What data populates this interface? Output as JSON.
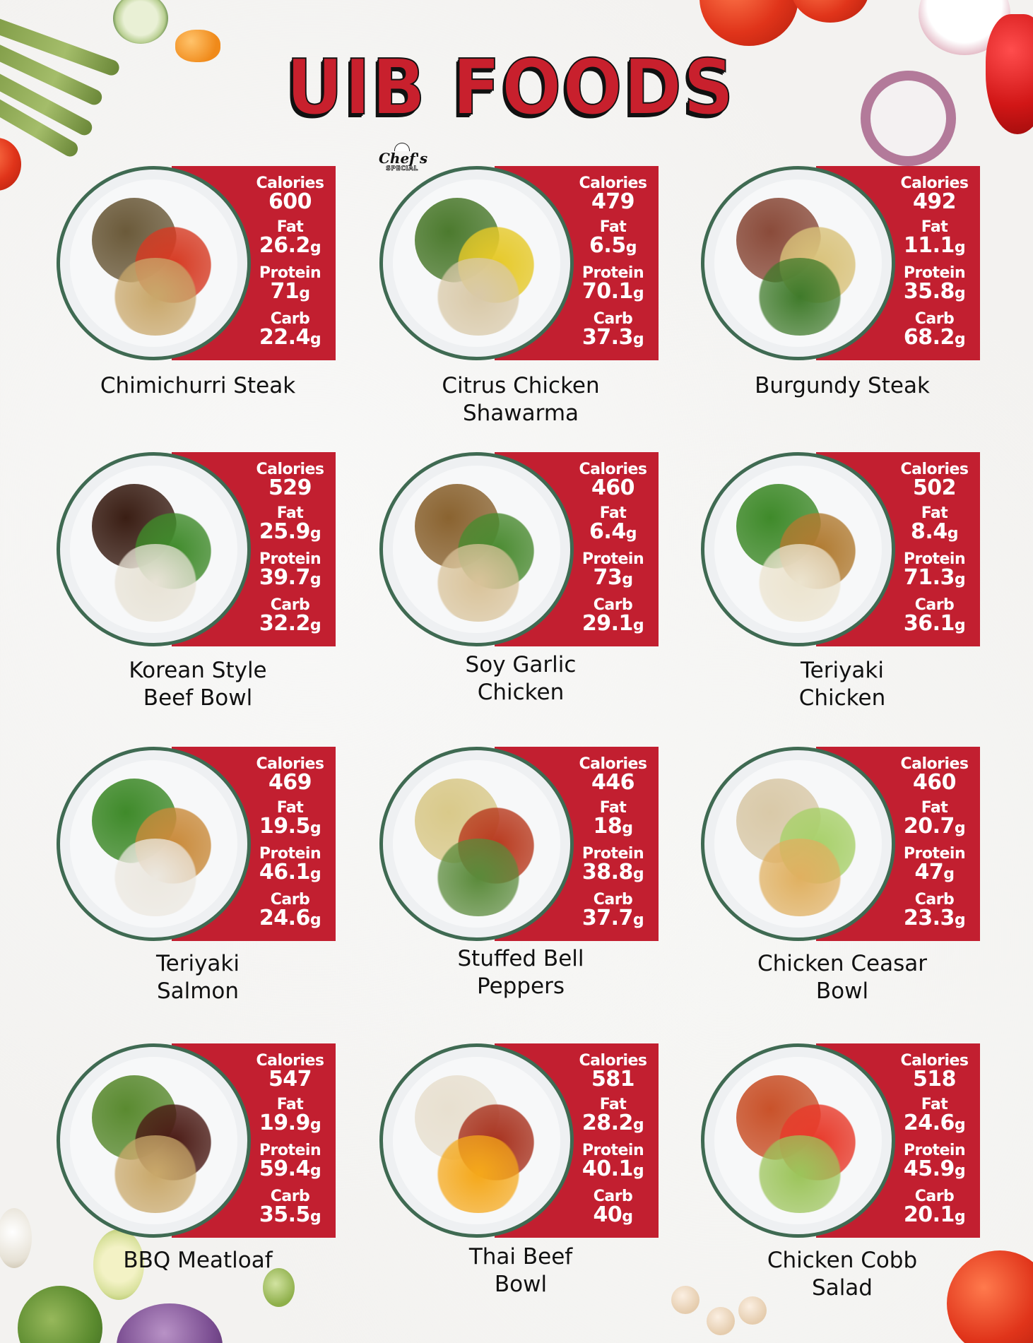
{
  "header": {
    "title": "UIB FOODS",
    "badge": {
      "script": "Chef's",
      "subtitle": "SPECIAL"
    }
  },
  "labels": {
    "calories": "Calories",
    "fat": "Fat",
    "protein": "Protein",
    "carb": "Carb",
    "unit": "g"
  },
  "colors": {
    "accent_red": "#c21f30",
    "plate_rim_green": "#3f6a52",
    "title_red": "#c8202d"
  },
  "dishes": [
    {
      "name_line1": "Chimichurri Steak",
      "name_line2": "",
      "calories": "600",
      "fat": "26.2",
      "protein": "71",
      "carb": "22.4",
      "badge": ""
    },
    {
      "name_line1": "Citrus Chicken",
      "name_line2": "Shawarma",
      "calories": "479",
      "fat": "6.5",
      "protein": "70.1",
      "carb": "37.3",
      "badge": "Chef's Special"
    },
    {
      "name_line1": "Burgundy Steak",
      "name_line2": "",
      "calories": "492",
      "fat": "11.1",
      "protein": "35.8",
      "carb": "68.2",
      "badge": ""
    },
    {
      "name_line1": "Korean Style",
      "name_line2": "Beef Bowl",
      "calories": "529",
      "fat": "25.9",
      "protein": "39.7",
      "carb": "32.2",
      "badge": ""
    },
    {
      "name_line1": "Soy Garlic",
      "name_line2": "Chicken",
      "calories": "460",
      "fat": "6.4",
      "protein": "73",
      "carb": "29.1",
      "badge": ""
    },
    {
      "name_line1": "Teriyaki",
      "name_line2": "Chicken",
      "calories": "502",
      "fat": "8.4",
      "protein": "71.3",
      "carb": "36.1",
      "badge": ""
    },
    {
      "name_line1": "Teriyaki",
      "name_line2": "Salmon",
      "calories": "469",
      "fat": "19.5",
      "protein": "46.1",
      "carb": "24.6",
      "badge": ""
    },
    {
      "name_line1": "Stuffed Bell",
      "name_line2": "Peppers",
      "calories": "446",
      "fat": "18",
      "protein": "38.8",
      "carb": "37.7",
      "badge": ""
    },
    {
      "name_line1": "Chicken Ceasar",
      "name_line2": "Bowl",
      "calories": "460",
      "fat": "20.7",
      "protein": "47",
      "carb": "23.3",
      "badge": ""
    },
    {
      "name_line1": "BBQ Meatloaf",
      "name_line2": "",
      "calories": "547",
      "fat": "19.9",
      "protein": "59.4",
      "carb": "35.5",
      "badge": ""
    },
    {
      "name_line1": "Thai Beef",
      "name_line2": "Bowl",
      "calories": "581",
      "fat": "28.2",
      "protein": "40.1",
      "carb": "40",
      "badge": ""
    },
    {
      "name_line1": "Chicken Cobb",
      "name_line2": "Salad",
      "calories": "518",
      "fat": "24.6",
      "protein": "45.9",
      "carb": "20.1",
      "badge": ""
    }
  ]
}
